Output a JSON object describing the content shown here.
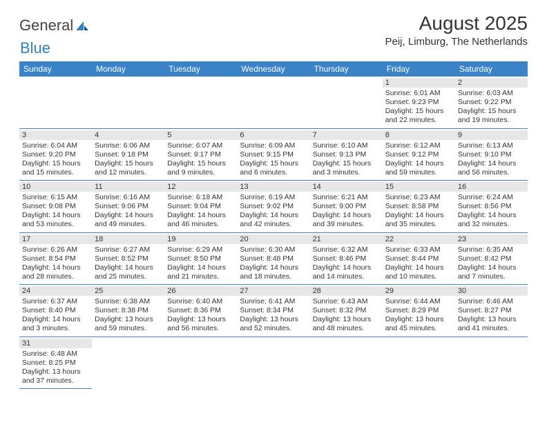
{
  "logo": {
    "text1": "General",
    "text2": "Blue"
  },
  "title": "August 2025",
  "location": "Peij, Limburg, The Netherlands",
  "colors": {
    "header_bg": "#3983c6",
    "header_fg": "#ffffff",
    "daynum_bg": "#e7e7e7",
    "rule": "#3983c6"
  },
  "weekdays": [
    "Sunday",
    "Monday",
    "Tuesday",
    "Wednesday",
    "Thursday",
    "Friday",
    "Saturday"
  ],
  "weeks": [
    [
      null,
      null,
      null,
      null,
      null,
      {
        "d": "1",
        "sr": "Sunrise: 6:01 AM",
        "ss": "Sunset: 9:23 PM",
        "dl": "Daylight: 15 hours and 22 minutes."
      },
      {
        "d": "2",
        "sr": "Sunrise: 6:03 AM",
        "ss": "Sunset: 9:22 PM",
        "dl": "Daylight: 15 hours and 19 minutes."
      }
    ],
    [
      {
        "d": "3",
        "sr": "Sunrise: 6:04 AM",
        "ss": "Sunset: 9:20 PM",
        "dl": "Daylight: 15 hours and 15 minutes."
      },
      {
        "d": "4",
        "sr": "Sunrise: 6:06 AM",
        "ss": "Sunset: 9:18 PM",
        "dl": "Daylight: 15 hours and 12 minutes."
      },
      {
        "d": "5",
        "sr": "Sunrise: 6:07 AM",
        "ss": "Sunset: 9:17 PM",
        "dl": "Daylight: 15 hours and 9 minutes."
      },
      {
        "d": "6",
        "sr": "Sunrise: 6:09 AM",
        "ss": "Sunset: 9:15 PM",
        "dl": "Daylight: 15 hours and 6 minutes."
      },
      {
        "d": "7",
        "sr": "Sunrise: 6:10 AM",
        "ss": "Sunset: 9:13 PM",
        "dl": "Daylight: 15 hours and 3 minutes."
      },
      {
        "d": "8",
        "sr": "Sunrise: 6:12 AM",
        "ss": "Sunset: 9:12 PM",
        "dl": "Daylight: 14 hours and 59 minutes."
      },
      {
        "d": "9",
        "sr": "Sunrise: 6:13 AM",
        "ss": "Sunset: 9:10 PM",
        "dl": "Daylight: 14 hours and 56 minutes."
      }
    ],
    [
      {
        "d": "10",
        "sr": "Sunrise: 6:15 AM",
        "ss": "Sunset: 9:08 PM",
        "dl": "Daylight: 14 hours and 53 minutes."
      },
      {
        "d": "11",
        "sr": "Sunrise: 6:16 AM",
        "ss": "Sunset: 9:06 PM",
        "dl": "Daylight: 14 hours and 49 minutes."
      },
      {
        "d": "12",
        "sr": "Sunrise: 6:18 AM",
        "ss": "Sunset: 9:04 PM",
        "dl": "Daylight: 14 hours and 46 minutes."
      },
      {
        "d": "13",
        "sr": "Sunrise: 6:19 AM",
        "ss": "Sunset: 9:02 PM",
        "dl": "Daylight: 14 hours and 42 minutes."
      },
      {
        "d": "14",
        "sr": "Sunrise: 6:21 AM",
        "ss": "Sunset: 9:00 PM",
        "dl": "Daylight: 14 hours and 39 minutes."
      },
      {
        "d": "15",
        "sr": "Sunrise: 6:23 AM",
        "ss": "Sunset: 8:58 PM",
        "dl": "Daylight: 14 hours and 35 minutes."
      },
      {
        "d": "16",
        "sr": "Sunrise: 6:24 AM",
        "ss": "Sunset: 8:56 PM",
        "dl": "Daylight: 14 hours and 32 minutes."
      }
    ],
    [
      {
        "d": "17",
        "sr": "Sunrise: 6:26 AM",
        "ss": "Sunset: 8:54 PM",
        "dl": "Daylight: 14 hours and 28 minutes."
      },
      {
        "d": "18",
        "sr": "Sunrise: 6:27 AM",
        "ss": "Sunset: 8:52 PM",
        "dl": "Daylight: 14 hours and 25 minutes."
      },
      {
        "d": "19",
        "sr": "Sunrise: 6:29 AM",
        "ss": "Sunset: 8:50 PM",
        "dl": "Daylight: 14 hours and 21 minutes."
      },
      {
        "d": "20",
        "sr": "Sunrise: 6:30 AM",
        "ss": "Sunset: 8:48 PM",
        "dl": "Daylight: 14 hours and 18 minutes."
      },
      {
        "d": "21",
        "sr": "Sunrise: 6:32 AM",
        "ss": "Sunset: 8:46 PM",
        "dl": "Daylight: 14 hours and 14 minutes."
      },
      {
        "d": "22",
        "sr": "Sunrise: 6:33 AM",
        "ss": "Sunset: 8:44 PM",
        "dl": "Daylight: 14 hours and 10 minutes."
      },
      {
        "d": "23",
        "sr": "Sunrise: 6:35 AM",
        "ss": "Sunset: 8:42 PM",
        "dl": "Daylight: 14 hours and 7 minutes."
      }
    ],
    [
      {
        "d": "24",
        "sr": "Sunrise: 6:37 AM",
        "ss": "Sunset: 8:40 PM",
        "dl": "Daylight: 14 hours and 3 minutes."
      },
      {
        "d": "25",
        "sr": "Sunrise: 6:38 AM",
        "ss": "Sunset: 8:38 PM",
        "dl": "Daylight: 13 hours and 59 minutes."
      },
      {
        "d": "26",
        "sr": "Sunrise: 6:40 AM",
        "ss": "Sunset: 8:36 PM",
        "dl": "Daylight: 13 hours and 56 minutes."
      },
      {
        "d": "27",
        "sr": "Sunrise: 6:41 AM",
        "ss": "Sunset: 8:34 PM",
        "dl": "Daylight: 13 hours and 52 minutes."
      },
      {
        "d": "28",
        "sr": "Sunrise: 6:43 AM",
        "ss": "Sunset: 8:32 PM",
        "dl": "Daylight: 13 hours and 48 minutes."
      },
      {
        "d": "29",
        "sr": "Sunrise: 6:44 AM",
        "ss": "Sunset: 8:29 PM",
        "dl": "Daylight: 13 hours and 45 minutes."
      },
      {
        "d": "30",
        "sr": "Sunrise: 6:46 AM",
        "ss": "Sunset: 8:27 PM",
        "dl": "Daylight: 13 hours and 41 minutes."
      }
    ],
    [
      {
        "d": "31",
        "sr": "Sunrise: 6:48 AM",
        "ss": "Sunset: 8:25 PM",
        "dl": "Daylight: 13 hours and 37 minutes."
      },
      null,
      null,
      null,
      null,
      null,
      null
    ]
  ]
}
